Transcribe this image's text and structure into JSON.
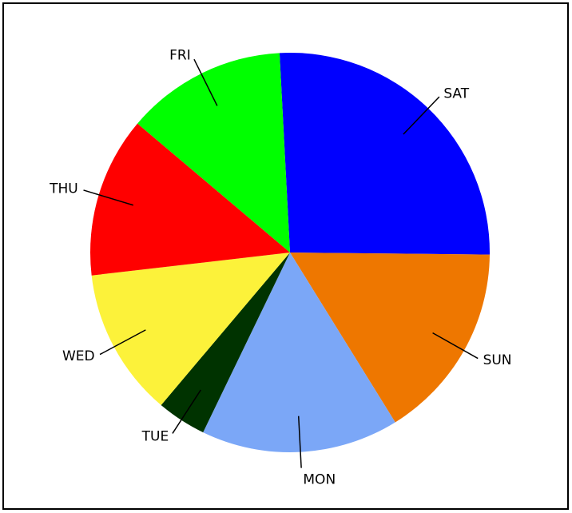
{
  "chart_data": {
    "type": "pie",
    "categories": [
      "SAT",
      "SUN",
      "MON",
      "TUE",
      "WED",
      "THU",
      "FRI"
    ],
    "values": [
      26,
      16,
      16,
      4,
      12,
      13,
      13
    ],
    "colors": [
      "#0000ff",
      "#ee7700",
      "#7ba7f7",
      "#003300",
      "#fcf23a",
      "#ff0000",
      "#00ff00"
    ]
  }
}
